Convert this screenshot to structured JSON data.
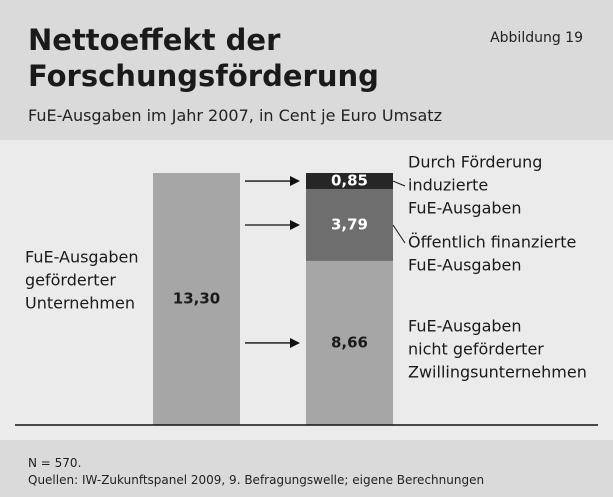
{
  "chart_data": {
    "type": "stacked_bar",
    "title": "Nettoeffekt der Forschungsförderung",
    "annotation": "Abbildung 19",
    "subtitle": "FuE-Ausgaben im Jahr 2007, in Cent je Euro Umsatz",
    "bars": [
      {
        "label": [
          "FuE-Ausgaben",
          "geförderter",
          "Unternehmen"
        ],
        "segments": [
          {
            "value": 13.3,
            "value_label": "13,30",
            "color": "#a6a6a6"
          }
        ]
      },
      {
        "segments": [
          {
            "value": 8.66,
            "value_label": "8,66",
            "color": "#a6a6a6",
            "label": [
              "FuE-Ausgaben",
              "nicht geförderter",
              "Zwillingsunternehmen"
            ]
          },
          {
            "value": 3.79,
            "value_label": "3,79",
            "color": "#6e6e6e",
            "label": [
              "Öffentlich finanzierte",
              "FuE-Ausgaben"
            ]
          },
          {
            "value": 0.85,
            "value_label": "0,85",
            "color": "#262626",
            "label": [
              "Durch Förderung",
              "induzierte",
              "FuE-Ausgaben"
            ]
          }
        ]
      }
    ],
    "notes": [
      "N = 570.",
      "Quellen: IW-Zukunftspanel 2009, 9. Befragungswelle; eigene Berechnungen"
    ]
  }
}
